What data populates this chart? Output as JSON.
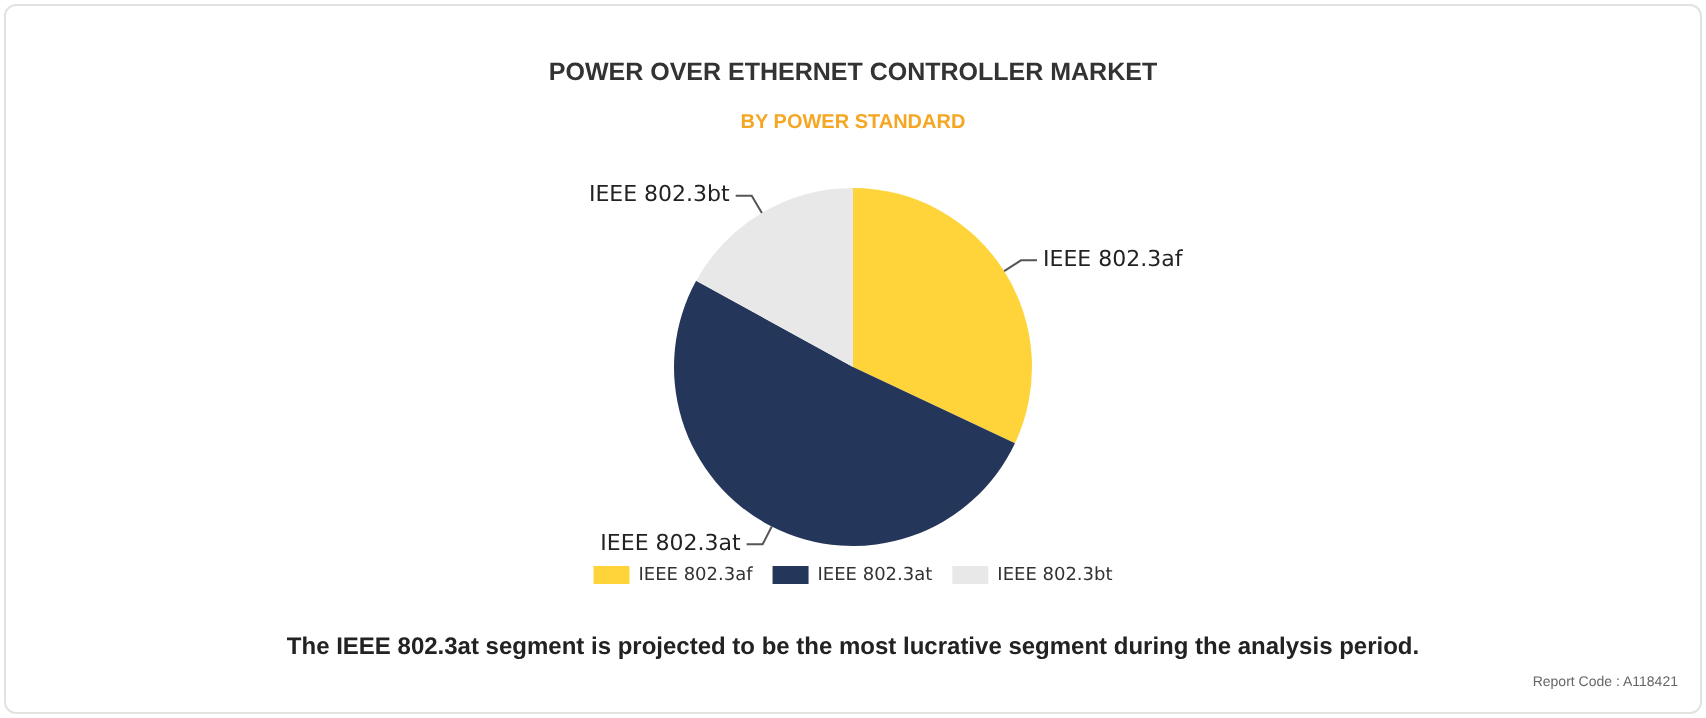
{
  "chart_data": {
    "type": "pie",
    "title": "POWER OVER ETHERNET CONTROLLER MARKET",
    "subtitle": "BY POWER STANDARD",
    "categories": [
      "IEEE 802.3af",
      "IEEE 802.3at",
      "IEEE 802.3bt"
    ],
    "values": [
      32,
      51,
      17
    ],
    "colors": [
      "#ffd43b",
      "#243659",
      "#e8e8e8"
    ],
    "legend": "bottom",
    "annotations": [
      "The IEEE 802.3at segment is projected to be the most lucrative segment during the analysis period.",
      "Report Code : A118421"
    ]
  }
}
